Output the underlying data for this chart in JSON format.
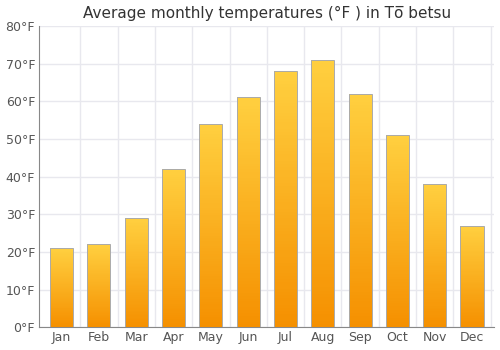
{
  "title": "Average monthly temperatures (°F ) in Tō̅ betsu",
  "months": [
    "Jan",
    "Feb",
    "Mar",
    "Apr",
    "May",
    "Jun",
    "Jul",
    "Aug",
    "Sep",
    "Oct",
    "Nov",
    "Dec"
  ],
  "values": [
    21,
    22,
    29,
    42,
    54,
    61,
    68,
    71,
    62,
    51,
    38,
    27
  ],
  "ylim": [
    0,
    80
  ],
  "yticks": [
    0,
    10,
    20,
    30,
    40,
    50,
    60,
    70,
    80
  ],
  "ytick_labels": [
    "0°F",
    "10°F",
    "20°F",
    "30°F",
    "40°F",
    "50°F",
    "60°F",
    "70°F",
    "80°F"
  ],
  "bar_color_top": "#FFD040",
  "bar_color_bottom": "#F59000",
  "bar_edge_color": "#AAAAAA",
  "background_color": "#FFFFFF",
  "plot_bg_color": "#FFFFFF",
  "title_fontsize": 11,
  "tick_fontsize": 9,
  "grid_color": "#E8E8EE",
  "bar_width": 0.62,
  "n_gradient": 80
}
